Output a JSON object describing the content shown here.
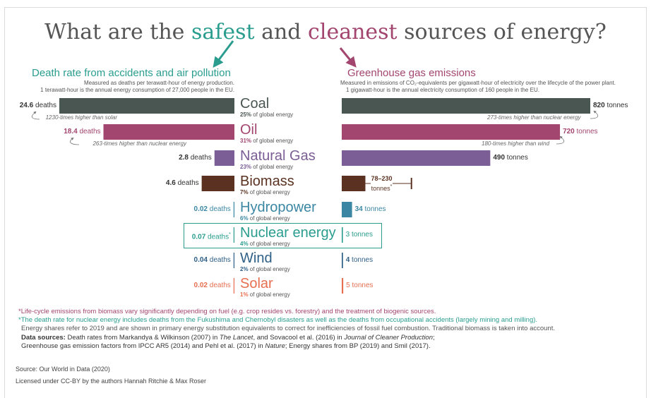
{
  "title": {
    "part1": "What are the ",
    "safe": "safest",
    "part2": " and ",
    "clean": "cleanest",
    "part3": " sources of energy?"
  },
  "left_panel": {
    "title": "Death rate from accidents and air pollution",
    "subtitle1": "Measured as deaths per terawatt-hour of energy production.",
    "subtitle2": "1 terawatt-hour is the annual energy consumption of 27,000 people in the EU."
  },
  "right_panel": {
    "title": "Greenhouse gas emissions",
    "subtitle1": "Measured in emissions of CO₂-equivalents per gigawatt-hour of electricity over the lifecycle of the power plant.",
    "subtitle2": "1 gigawatt-hour is the annual electricity consumption of 160 people in the EU."
  },
  "share_suffix": "of global energy",
  "colors": {
    "coal": "#4a5651",
    "oil": "#a2456f",
    "natural_gas": "#7b5e96",
    "biomass": "#5b3222",
    "hydropower": "#3b87a3",
    "nuclear": "#2a9d8f",
    "wind": "#2e5f86",
    "solar": "#e76f51",
    "title_safe": "#2a9d8f",
    "title_clean": "#a2456f"
  },
  "chart_data": {
    "type": "bar",
    "categories": [
      "Coal",
      "Oil",
      "Natural Gas",
      "Biomass",
      "Hydropower",
      "Nuclear energy",
      "Wind",
      "Solar"
    ],
    "shares": [
      "25%",
      "31%",
      "23%",
      "7%",
      "6%",
      "4%",
      "2%",
      "1%"
    ],
    "series": [
      {
        "name": "Death rate from accidents and air pollution",
        "unit": "deaths",
        "values": [
          24.6,
          18.4,
          2.8,
          4.6,
          0.02,
          0.07,
          0.04,
          0.02
        ],
        "labels": [
          "24.6",
          "18.4",
          "2.8",
          "4.6",
          "0.02",
          "0.07",
          "0.04",
          "0.02"
        ]
      },
      {
        "name": "Greenhouse gas emissions",
        "unit": "tonnes",
        "values": [
          820,
          720,
          490,
          null,
          34,
          3,
          4,
          5
        ],
        "labels": [
          "820",
          "720",
          "490",
          "78–230",
          "34",
          "3",
          "4",
          "5"
        ],
        "biomass_range": [
          78,
          230
        ]
      }
    ],
    "annotations": {
      "coal_death": "1230-times higher than solar",
      "oil_death": "263-times higher than nuclear energy",
      "coal_ghg": "273-times higher than nuclear energy",
      "oil_ghg": "180-times higher than wind"
    }
  },
  "notes": {
    "biomass": "*Life-cycle emissions from biomass vary significantly depending on fuel (e.g. crop resides vs. forestry) and the treatment of biogenic sources.",
    "nuclear": "*The death rate for nuclear energy includes deaths from the Fukushima and Chernobyl disasters as well as the deaths from occupational accidents (largely mining and milling).",
    "shares": "Energy shares refer to 2019 and are shown in primary energy substitution equivalents to correct for inefficiencies of fossil fuel combustion. Traditional biomass is taken into account.",
    "sources_label": "Data sources:",
    "sources_1a": " Death rates from Markandya & Wilkinson (2007) in ",
    "sources_1b": "The Lancet",
    "sources_1c": ", and Sovacool et al. (2016) in ",
    "sources_1d": "Journal of Cleaner Production",
    "sources_1e": ";",
    "sources_2a": "Greenhouse gas emission factors from IPCC AR5 (2014) and Pehl et al. (2017) in ",
    "sources_2b": "Nature",
    "sources_2c": "; Energy shares from BP (2019) and Smil (2017)."
  },
  "credits": {
    "source": "Source: Our World in Data (2020)",
    "license": "Licensed under CC-BY by the authors Hannah Ritchie & Max Roser"
  }
}
